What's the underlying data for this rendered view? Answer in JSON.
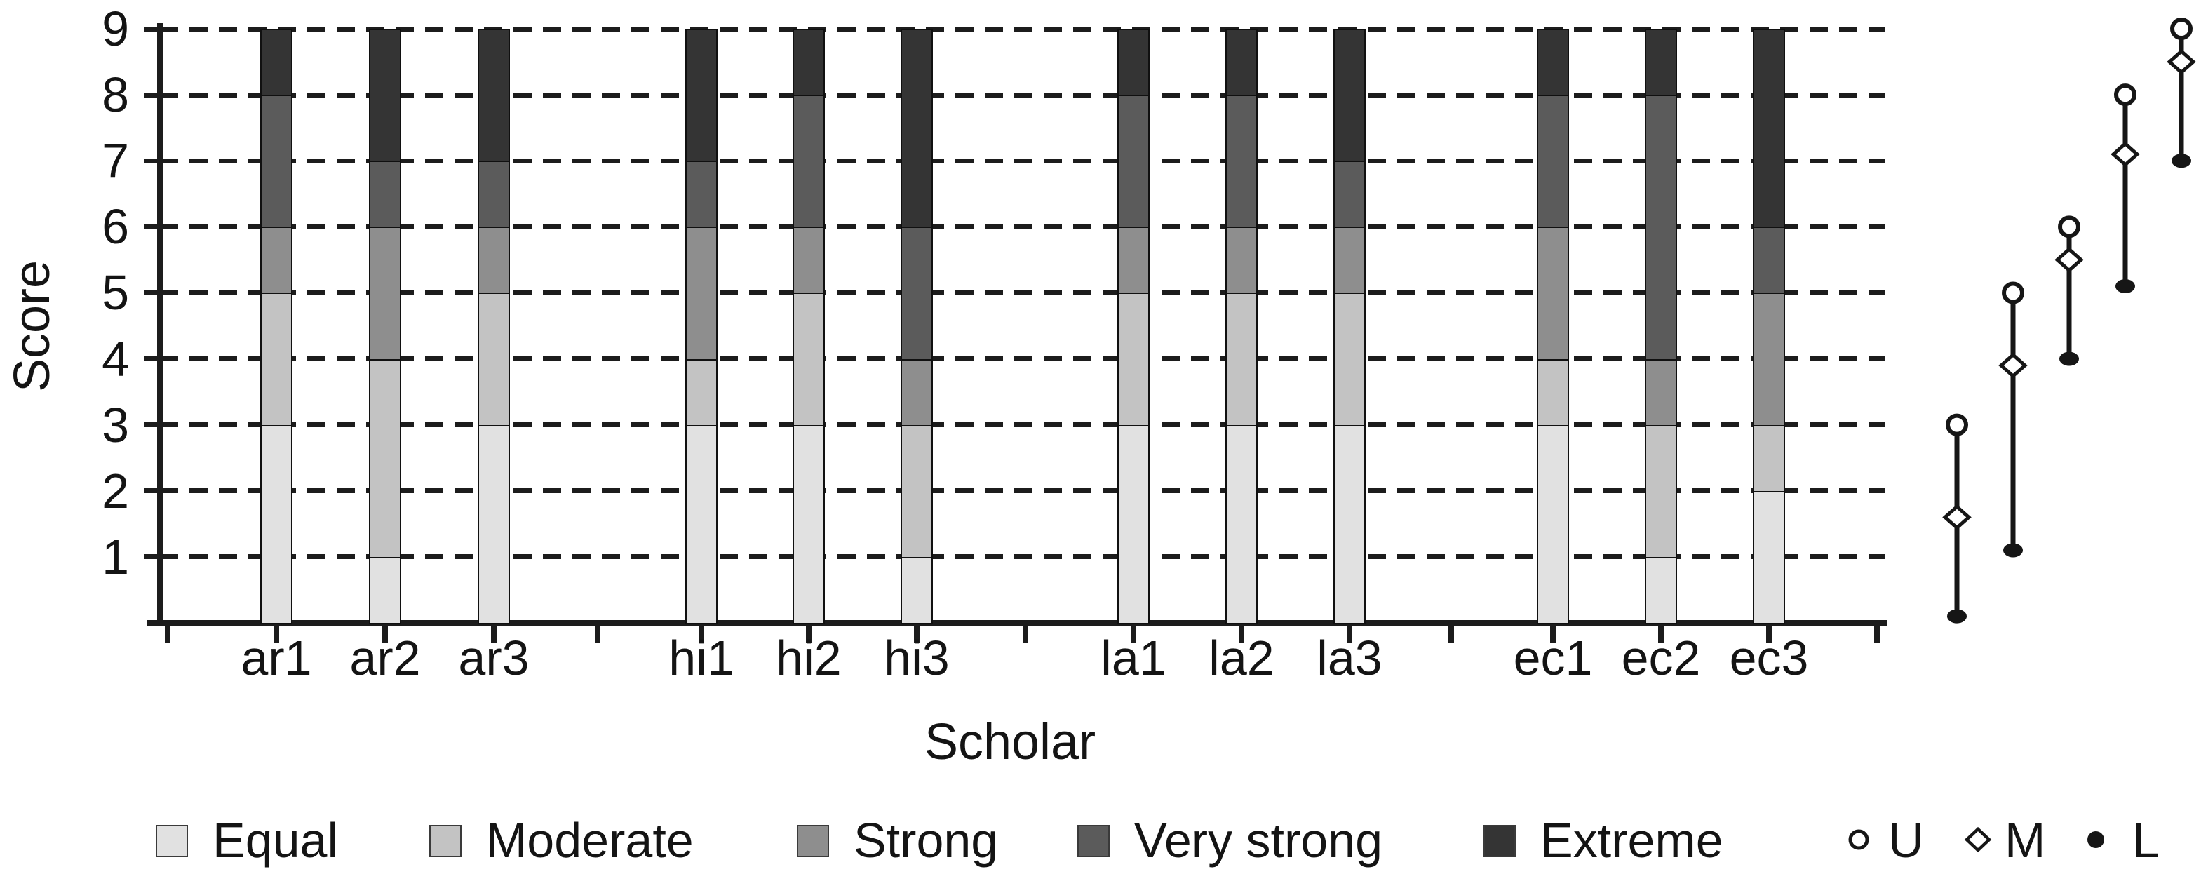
{
  "chart_data": {
    "type": "bar",
    "subtype": "stacked-bar-with-range-markers",
    "title": "",
    "xlabel": "Scholar",
    "ylabel": "Score",
    "ylim": [
      0,
      9
    ],
    "yticks": [
      1,
      2,
      3,
      4,
      5,
      6,
      7,
      8,
      9
    ],
    "grid": "dashed-horizontal",
    "legend_position": "bottom",
    "categories": [
      "ar1",
      "ar2",
      "ar3",
      "hi1",
      "hi2",
      "hi3",
      "la1",
      "la2",
      "la3",
      "ec1",
      "ec2",
      "ec3"
    ],
    "groups": [
      {
        "name": "ar",
        "bars": [
          "ar1",
          "ar2",
          "ar3"
        ]
      },
      {
        "name": "hi",
        "bars": [
          "hi1",
          "hi2",
          "hi3"
        ]
      },
      {
        "name": "la",
        "bars": [
          "la1",
          "la2",
          "la3"
        ]
      },
      {
        "name": "ec",
        "bars": [
          "ec1",
          "ec2",
          "ec3"
        ]
      }
    ],
    "series": [
      {
        "name": "Equal",
        "color": "#e1e1e1",
        "values": [
          3,
          1,
          3,
          3,
          3,
          1,
          3,
          3,
          3,
          3,
          1,
          2
        ]
      },
      {
        "name": "Moderate",
        "color": "#c3c3c3",
        "values": [
          2,
          3,
          2,
          1,
          2,
          2,
          2,
          2,
          2,
          1,
          2,
          1
        ]
      },
      {
        "name": "Strong",
        "color": "#8e8e8e",
        "values": [
          1,
          2,
          1,
          2,
          1,
          1,
          1,
          1,
          1,
          2,
          1,
          2
        ]
      },
      {
        "name": "Very strong",
        "color": "#5b5b5b",
        "values": [
          2,
          1,
          1,
          1,
          2,
          2,
          2,
          2,
          1,
          2,
          4,
          1
        ]
      },
      {
        "name": "Extreme",
        "color": "#343434",
        "values": [
          1,
          2,
          2,
          2,
          1,
          3,
          1,
          1,
          2,
          1,
          1,
          3
        ]
      }
    ],
    "range_markers": {
      "marker_legend": [
        {
          "symbol": "open-circle",
          "label": "U"
        },
        {
          "symbol": "open-diamond",
          "label": "M"
        },
        {
          "symbol": "filled-dot",
          "label": "L"
        }
      ],
      "points": [
        {
          "U": 3.0,
          "M": 1.6,
          "L": 0.1
        },
        {
          "U": 5.0,
          "M": 3.9,
          "L": 1.1
        },
        {
          "U": 6.0,
          "M": 5.5,
          "L": 4.0
        },
        {
          "U": 8.0,
          "M": 7.1,
          "L": 5.1
        },
        {
          "U": 9.0,
          "M": 8.5,
          "L": 7.0
        }
      ]
    },
    "colors": {
      "axis": "#1c1c1c",
      "text": "#141414",
      "marker_stroke": "#161616",
      "background": "#ffffff"
    }
  }
}
